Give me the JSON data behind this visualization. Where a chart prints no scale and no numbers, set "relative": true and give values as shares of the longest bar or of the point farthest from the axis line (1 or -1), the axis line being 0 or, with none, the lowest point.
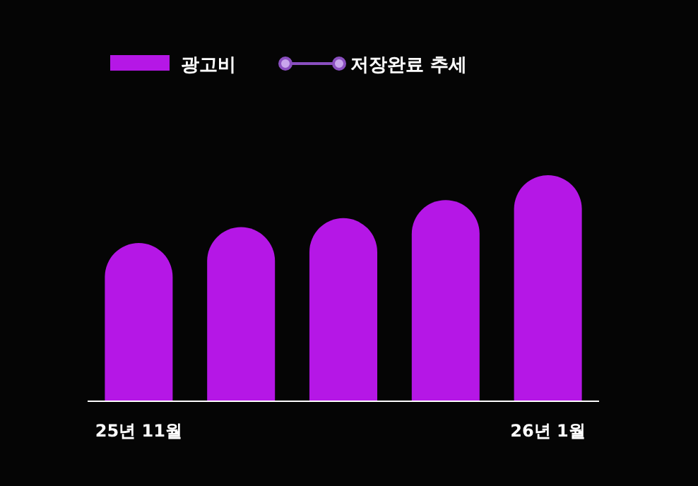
{
  "chart_data": {
    "type": "bar",
    "relative": true,
    "categories": [
      "25년 11월",
      null,
      null,
      null,
      "26년 1월"
    ],
    "series": [
      {
        "name": "광고비",
        "color": "#b517e6",
        "values": [
          0.7,
          0.77,
          0.81,
          0.89,
          1
        ]
      },
      {
        "name": "저장완료 추세",
        "type": "line",
        "color": "#8a4fc0",
        "marker": "circle",
        "values": [
          null,
          null,
          null,
          null,
          null
        ]
      }
    ],
    "legend": "top left"
  }
}
